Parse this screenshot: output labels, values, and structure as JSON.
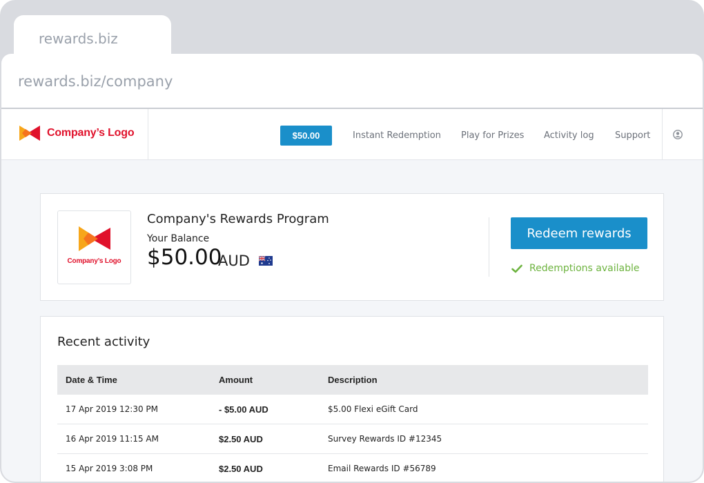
{
  "browser": {
    "tab_title": "rewards.biz",
    "url": "rewards.biz/company"
  },
  "nav": {
    "logo_text": "Company’s Logo",
    "balance_chip": "$50.00",
    "links": [
      "Instant Redemption",
      "Play for Prizes",
      "Activity log",
      "Support"
    ],
    "user_icon": "user-circle-icon"
  },
  "program": {
    "logo_text": "Company’s Logo",
    "title": "Company's Rewards Program",
    "balance_label": "Your Balance",
    "balance_amount": "$50.00",
    "currency": "AUD",
    "flag": "australia-flag-icon",
    "redeem_label": "Redeem rewards",
    "status_text": "Redemptions available"
  },
  "activity": {
    "title": "Recent activity",
    "columns": [
      "Date & Time",
      "Amount",
      "Description"
    ],
    "rows": [
      {
        "date": "17 Apr 2019 12:30 PM",
        "amount": "- $5.00 AUD",
        "description": "$5.00 Flexi eGift Card"
      },
      {
        "date": "16 Apr 2019 11:15 AM",
        "amount": "$2.50 AUD",
        "description": "Survey Rewards ID #12345"
      },
      {
        "date": "15 Apr 2019 3:08 PM",
        "amount": "$2.50 AUD",
        "description": "Email Rewards ID #56789"
      }
    ]
  },
  "colors": {
    "accent": "#1a8fca",
    "brand_red": "#e0112b",
    "success": "#6db33f"
  }
}
